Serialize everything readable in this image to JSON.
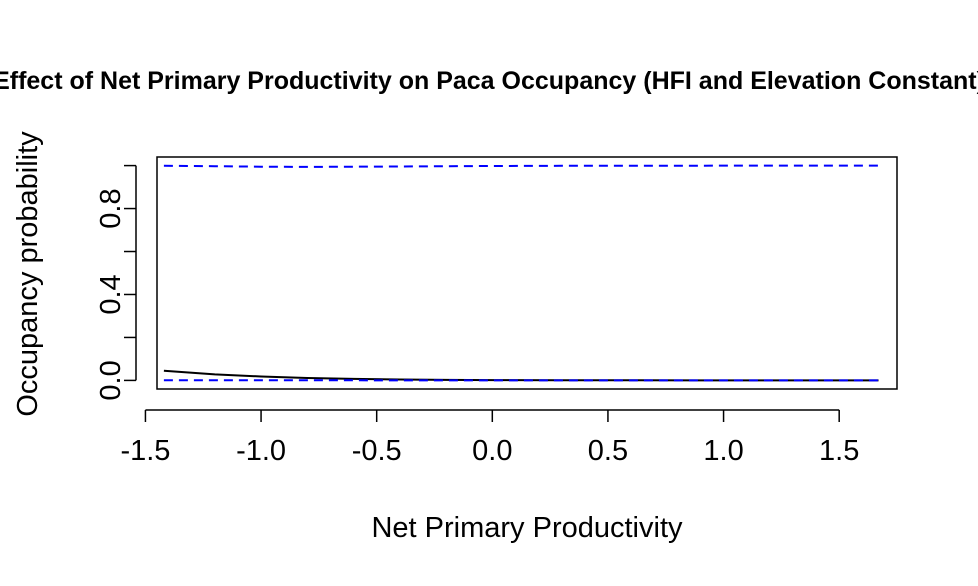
{
  "chart_data": {
    "type": "line",
    "title": "Effect of Net Primary Productivity on Paca Occupancy (HFI and Elevation Constant)",
    "xlabel": "Net Primary Productivity",
    "ylabel": "Occupancy probability",
    "xlim": [
      -1.45,
      1.75
    ],
    "ylim": [
      -0.04,
      1.04
    ],
    "xticks": [
      -1.5,
      -1.0,
      -0.5,
      0.0,
      0.5,
      1.0,
      1.5
    ],
    "xtick_labels": [
      "-1.5",
      "-1.0",
      "-0.5",
      "0.0",
      "0.5",
      "1.0",
      "1.5"
    ],
    "yticks": [
      0.0,
      0.2,
      0.4,
      0.6,
      0.8,
      1.0
    ],
    "ytick_labels": [
      "0.0",
      "",
      "0.4",
      "",
      "0.8",
      ""
    ],
    "grid": false,
    "legend": "none",
    "x": [
      -1.42,
      -1.2,
      -1.0,
      -0.8,
      -0.6,
      -0.4,
      -0.2,
      0.0,
      0.3,
      0.6,
      0.9,
      1.2,
      1.5,
      1.67
    ],
    "series": [
      {
        "role": "estimate",
        "color": "#000000",
        "dash": "solid",
        "values": [
          0.045,
          0.028,
          0.018,
          0.011,
          0.007,
          0.004,
          0.0025,
          0.0015,
          0.0008,
          0.0004,
          0.0002,
          0.0001,
          5e-05,
          3e-05
        ]
      },
      {
        "role": "upper",
        "color": "#0000ff",
        "dash": "dashed",
        "values": [
          0.999,
          0.997,
          0.995,
          0.994,
          0.995,
          0.996,
          0.997,
          0.998,
          0.999,
          0.999,
          0.9995,
          0.9998,
          0.9999,
          0.9999
        ]
      },
      {
        "role": "lower",
        "color": "#0000ff",
        "dash": "dashed",
        "values": [
          0.001,
          0.0008,
          0.0006,
          0.0004,
          0.0003,
          0.0002,
          0.0001,
          0.0001,
          5e-05,
          3e-05,
          2e-05,
          1e-05,
          1e-05,
          1e-05
        ]
      }
    ]
  }
}
